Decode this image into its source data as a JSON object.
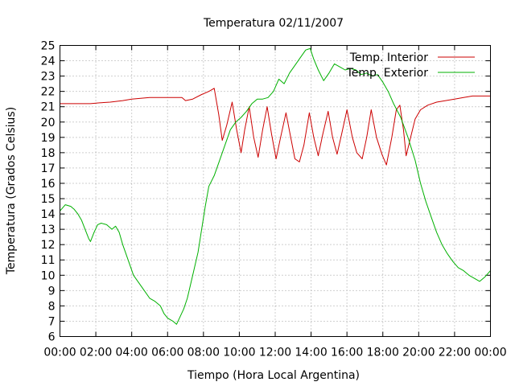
{
  "chart_data": {
    "type": "line",
    "title": "Temperatura 02/11/2007",
    "xlabel": "Tiempo (Hora Local Argentina)",
    "ylabel": "Temperatura (Grados Celsius)",
    "xlim": [
      0,
      24
    ],
    "ylim": [
      6,
      25
    ],
    "grid": true,
    "legend_position": "top-right",
    "x_ticks": [
      {
        "v": 0,
        "label": "00:00"
      },
      {
        "v": 2,
        "label": "02:00"
      },
      {
        "v": 4,
        "label": "04:00"
      },
      {
        "v": 6,
        "label": "06:00"
      },
      {
        "v": 8,
        "label": "08:00"
      },
      {
        "v": 10,
        "label": "10:00"
      },
      {
        "v": 12,
        "label": "12:00"
      },
      {
        "v": 14,
        "label": "14:00"
      },
      {
        "v": 16,
        "label": "16:00"
      },
      {
        "v": 18,
        "label": "18:00"
      },
      {
        "v": 20,
        "label": "20:00"
      },
      {
        "v": 22,
        "label": "22:00"
      },
      {
        "v": 24,
        "label": "00:00"
      }
    ],
    "y_ticks": [
      6,
      7,
      8,
      9,
      10,
      11,
      12,
      13,
      14,
      15,
      16,
      17,
      18,
      19,
      20,
      21,
      22,
      23,
      24,
      25
    ],
    "series": [
      {
        "name": "Temp. Interior",
        "color": "#cc0000",
        "points": [
          [
            0,
            21.2
          ],
          [
            1,
            21.2
          ],
          [
            1.7,
            21.2
          ],
          [
            2.2,
            21.25
          ],
          [
            2.8,
            21.3
          ],
          [
            3.5,
            21.4
          ],
          [
            4,
            21.5
          ],
          [
            5,
            21.6
          ],
          [
            6,
            21.6
          ],
          [
            6.8,
            21.6
          ],
          [
            7,
            21.4
          ],
          [
            7.4,
            21.5
          ],
          [
            7.9,
            21.8
          ],
          [
            8.3,
            22.0
          ],
          [
            8.6,
            22.2
          ],
          [
            8.85,
            20.5
          ],
          [
            9.05,
            18.8
          ],
          [
            9.3,
            19.8
          ],
          [
            9.6,
            21.3
          ],
          [
            9.85,
            19.5
          ],
          [
            10.1,
            18.0
          ],
          [
            10.3,
            19.5
          ],
          [
            10.55,
            21.0
          ],
          [
            10.8,
            19.0
          ],
          [
            11.05,
            17.7
          ],
          [
            11.3,
            19.5
          ],
          [
            11.55,
            21.0
          ],
          [
            11.8,
            19.2
          ],
          [
            12.05,
            17.6
          ],
          [
            12.3,
            19.0
          ],
          [
            12.6,
            20.6
          ],
          [
            12.85,
            19.1
          ],
          [
            13.1,
            17.6
          ],
          [
            13.35,
            17.4
          ],
          [
            13.6,
            18.5
          ],
          [
            13.9,
            20.6
          ],
          [
            14.15,
            19.0
          ],
          [
            14.4,
            17.8
          ],
          [
            14.65,
            19.2
          ],
          [
            14.95,
            20.7
          ],
          [
            15.2,
            19.0
          ],
          [
            15.45,
            17.9
          ],
          [
            15.7,
            19.2
          ],
          [
            16,
            20.8
          ],
          [
            16.3,
            19.0
          ],
          [
            16.55,
            18.0
          ],
          [
            16.85,
            17.6
          ],
          [
            17.1,
            19.0
          ],
          [
            17.35,
            20.8
          ],
          [
            17.65,
            19.0
          ],
          [
            17.95,
            17.9
          ],
          [
            18.2,
            17.2
          ],
          [
            18.5,
            19.0
          ],
          [
            18.75,
            20.8
          ],
          [
            18.95,
            21.1
          ],
          [
            19.15,
            19.5
          ],
          [
            19.3,
            17.8
          ],
          [
            19.55,
            19.0
          ],
          [
            19.8,
            20.2
          ],
          [
            20.1,
            20.8
          ],
          [
            20.5,
            21.1
          ],
          [
            21,
            21.3
          ],
          [
            21.5,
            21.4
          ],
          [
            22,
            21.5
          ],
          [
            22.5,
            21.6
          ],
          [
            23,
            21.7
          ],
          [
            23.5,
            21.7
          ],
          [
            24,
            21.7
          ]
        ]
      },
      {
        "name": "Temp. Exterior",
        "color": "#00b000",
        "points": [
          [
            0,
            14.2
          ],
          [
            0.3,
            14.6
          ],
          [
            0.6,
            14.5
          ],
          [
            0.8,
            14.3
          ],
          [
            1.0,
            14.0
          ],
          [
            1.2,
            13.6
          ],
          [
            1.4,
            13.0
          ],
          [
            1.6,
            12.4
          ],
          [
            1.7,
            12.2
          ],
          [
            1.9,
            12.8
          ],
          [
            2.1,
            13.3
          ],
          [
            2.3,
            13.4
          ],
          [
            2.6,
            13.3
          ],
          [
            2.9,
            13.0
          ],
          [
            3.1,
            13.2
          ],
          [
            3.3,
            12.8
          ],
          [
            3.5,
            12.0
          ],
          [
            3.8,
            11.0
          ],
          [
            4.1,
            10.0
          ],
          [
            4.4,
            9.5
          ],
          [
            4.7,
            9.0
          ],
          [
            5.0,
            8.5
          ],
          [
            5.3,
            8.3
          ],
          [
            5.6,
            8.0
          ],
          [
            5.8,
            7.5
          ],
          [
            6.0,
            7.2
          ],
          [
            6.3,
            7.0
          ],
          [
            6.5,
            6.8
          ],
          [
            6.7,
            7.3
          ],
          [
            6.9,
            7.8
          ],
          [
            7.1,
            8.5
          ],
          [
            7.4,
            10.0
          ],
          [
            7.7,
            11.5
          ],
          [
            7.9,
            13.0
          ],
          [
            8.1,
            14.5
          ],
          [
            8.3,
            15.8
          ],
          [
            8.6,
            16.5
          ],
          [
            8.9,
            17.5
          ],
          [
            9.2,
            18.5
          ],
          [
            9.5,
            19.5
          ],
          [
            9.8,
            20.0
          ],
          [
            10.1,
            20.3
          ],
          [
            10.4,
            20.7
          ],
          [
            10.7,
            21.2
          ],
          [
            11.0,
            21.5
          ],
          [
            11.3,
            21.5
          ],
          [
            11.6,
            21.6
          ],
          [
            11.9,
            22.0
          ],
          [
            12.2,
            22.8
          ],
          [
            12.5,
            22.5
          ],
          [
            12.8,
            23.2
          ],
          [
            13.1,
            23.7
          ],
          [
            13.4,
            24.2
          ],
          [
            13.7,
            24.7
          ],
          [
            13.95,
            24.8
          ],
          [
            14.15,
            24.1
          ],
          [
            14.4,
            23.4
          ],
          [
            14.7,
            22.7
          ],
          [
            15.0,
            23.2
          ],
          [
            15.3,
            23.8
          ],
          [
            15.6,
            23.6
          ],
          [
            15.9,
            23.4
          ],
          [
            16.2,
            23.5
          ],
          [
            16.5,
            23.4
          ],
          [
            16.8,
            23.1
          ],
          [
            17.1,
            23.2
          ],
          [
            17.4,
            23.0
          ],
          [
            17.7,
            23.1
          ],
          [
            18.0,
            22.6
          ],
          [
            18.3,
            22.0
          ],
          [
            18.6,
            21.2
          ],
          [
            19.0,
            20.3
          ],
          [
            19.4,
            19.0
          ],
          [
            19.8,
            17.5
          ],
          [
            20.1,
            16.0
          ],
          [
            20.4,
            14.8
          ],
          [
            20.7,
            13.8
          ],
          [
            21.0,
            12.8
          ],
          [
            21.3,
            12.0
          ],
          [
            21.6,
            11.4
          ],
          [
            21.9,
            10.9
          ],
          [
            22.2,
            10.5
          ],
          [
            22.5,
            10.3
          ],
          [
            22.8,
            10.0
          ],
          [
            23.1,
            9.8
          ],
          [
            23.4,
            9.6
          ],
          [
            23.7,
            9.9
          ],
          [
            24.0,
            10.3
          ]
        ]
      }
    ]
  }
}
